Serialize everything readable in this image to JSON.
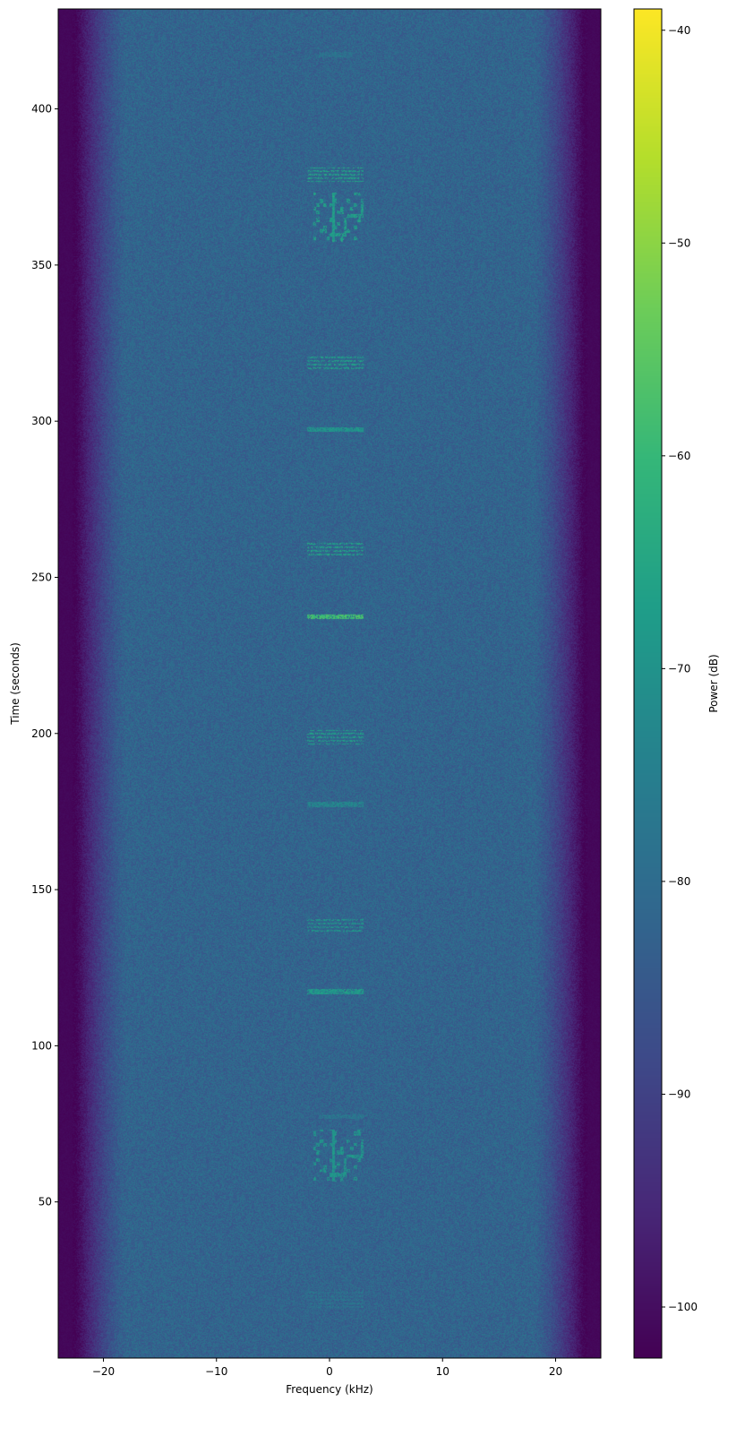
{
  "chart_data": {
    "type": "heatmap",
    "title": "",
    "xlabel": "Frequency (kHz)",
    "ylabel": "Time (seconds)",
    "xlim": [
      -24,
      24
    ],
    "ylim": [
      0,
      432
    ],
    "xticks": [
      -20,
      -10,
      0,
      10,
      20
    ],
    "xtick_labels": [
      "−20",
      "−10",
      "0",
      "10",
      "20"
    ],
    "yticks": [
      50,
      100,
      150,
      200,
      250,
      300,
      350,
      400
    ],
    "ytick_labels": [
      "50",
      "100",
      "150",
      "200",
      "250",
      "300",
      "350",
      "400"
    ],
    "colorbar": {
      "label": "Power (dB)",
      "range": [
        -102.4,
        -39
      ],
      "ticks": [
        -40,
        -50,
        -60,
        -70,
        -80,
        -90,
        -100
      ],
      "tick_labels": [
        "−40",
        "−50",
        "−60",
        "−70",
        "−80",
        "−90",
        "−100"
      ],
      "colormap": "viridis"
    },
    "background": {
      "noise_floor_db": -82,
      "rolloff_start_khz": 18,
      "rolloff_end_khz": 22.5,
      "edge_level_db": -102
    },
    "signals": [
      {
        "t_start": 16,
        "t_end": 21,
        "f_start": -2,
        "f_end": 3,
        "kind": "burst",
        "peak_db": -74
      },
      {
        "t_start": 57,
        "t_end": 73,
        "f_start": -1.5,
        "f_end": 3,
        "kind": "text-pattern",
        "peak_db": -66
      },
      {
        "t_start": 77,
        "t_end": 78,
        "f_start": -1,
        "f_end": 3,
        "kind": "line",
        "peak_db": -74
      },
      {
        "t_start": 117,
        "t_end": 118,
        "f_start": -2,
        "f_end": 3,
        "kind": "line",
        "peak_db": -65
      },
      {
        "t_start": 137,
        "t_end": 141,
        "f_start": -2,
        "f_end": 3,
        "kind": "burst",
        "peak_db": -66
      },
      {
        "t_start": 177,
        "t_end": 178,
        "f_start": -2,
        "f_end": 3,
        "kind": "line",
        "peak_db": -70
      },
      {
        "t_start": 197,
        "t_end": 201,
        "f_start": -2,
        "f_end": 3,
        "kind": "burst",
        "peak_db": -64
      },
      {
        "t_start": 237,
        "t_end": 238,
        "f_start": -2,
        "f_end": 3,
        "kind": "line",
        "peak_db": -55
      },
      {
        "t_start": 257,
        "t_end": 261,
        "f_start": -2,
        "f_end": 3,
        "kind": "burst",
        "peak_db": -63
      },
      {
        "t_start": 297,
        "t_end": 298,
        "f_start": -2,
        "f_end": 3,
        "kind": "line",
        "peak_db": -66
      },
      {
        "t_start": 317,
        "t_end": 321,
        "f_start": -2,
        "f_end": 3,
        "kind": "burst",
        "peak_db": -64
      },
      {
        "t_start": 358,
        "t_end": 373,
        "f_start": -1.5,
        "f_end": 3,
        "kind": "text-pattern",
        "peak_db": -64
      },
      {
        "t_start": 377,
        "t_end": 381,
        "f_start": -2,
        "f_end": 3,
        "kind": "burst",
        "peak_db": -63
      },
      {
        "t_start": 417,
        "t_end": 418,
        "f_start": -1,
        "f_end": 2,
        "kind": "line",
        "peak_db": -75
      }
    ]
  }
}
